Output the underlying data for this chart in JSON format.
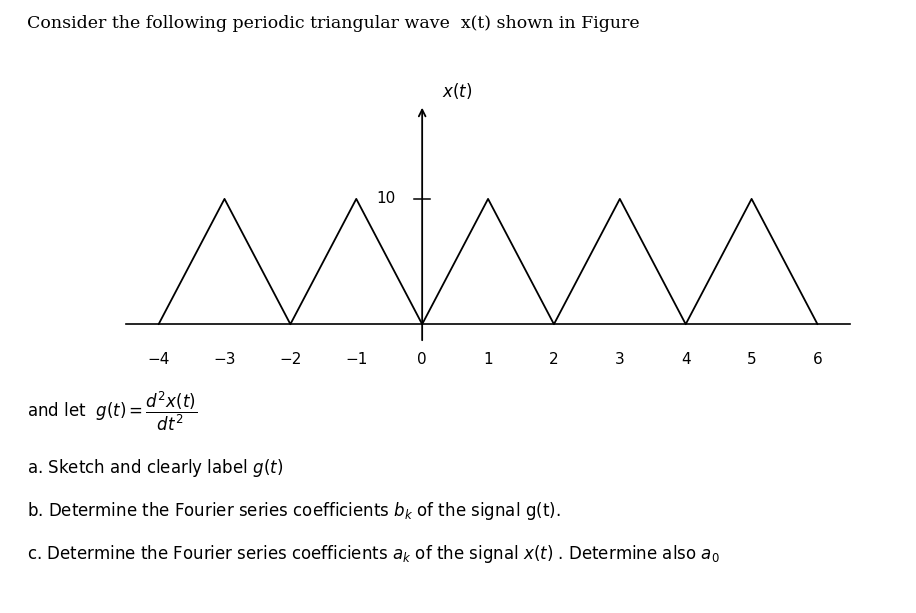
{
  "title_text": "Consider the following periodic triangular wave  x(t) shown in Figure",
  "ylabel_text": "x(t)",
  "xlabel_ticks": [
    -4,
    -3,
    -2,
    -1,
    0,
    1,
    2,
    3,
    4,
    5,
    6
  ],
  "ytick_label": "10",
  "ytick_value": 10,
  "wave_amplitude": 10,
  "triangle_peaks": [
    -3,
    -1,
    1,
    3,
    5
  ],
  "triangle_bases_left": [
    -4,
    -2,
    0,
    2,
    4
  ],
  "triangle_bases_right": [
    -2,
    0,
    2,
    4,
    6
  ],
  "x_axis_min": -4.6,
  "x_axis_max": 6.8,
  "y_axis_min": -2.5,
  "y_axis_max": 20,
  "line_color": "#000000",
  "background_color": "#ffffff",
  "items": [
    "a. Sketch and clearly label $g(t)$",
    "b. Determine the Fourier series coefficients $b_k$ of the signal g(t).",
    "c. Determine the Fourier series coefficients $a_k$ of the signal $x(t)$ . Determine also $a_0$"
  ]
}
